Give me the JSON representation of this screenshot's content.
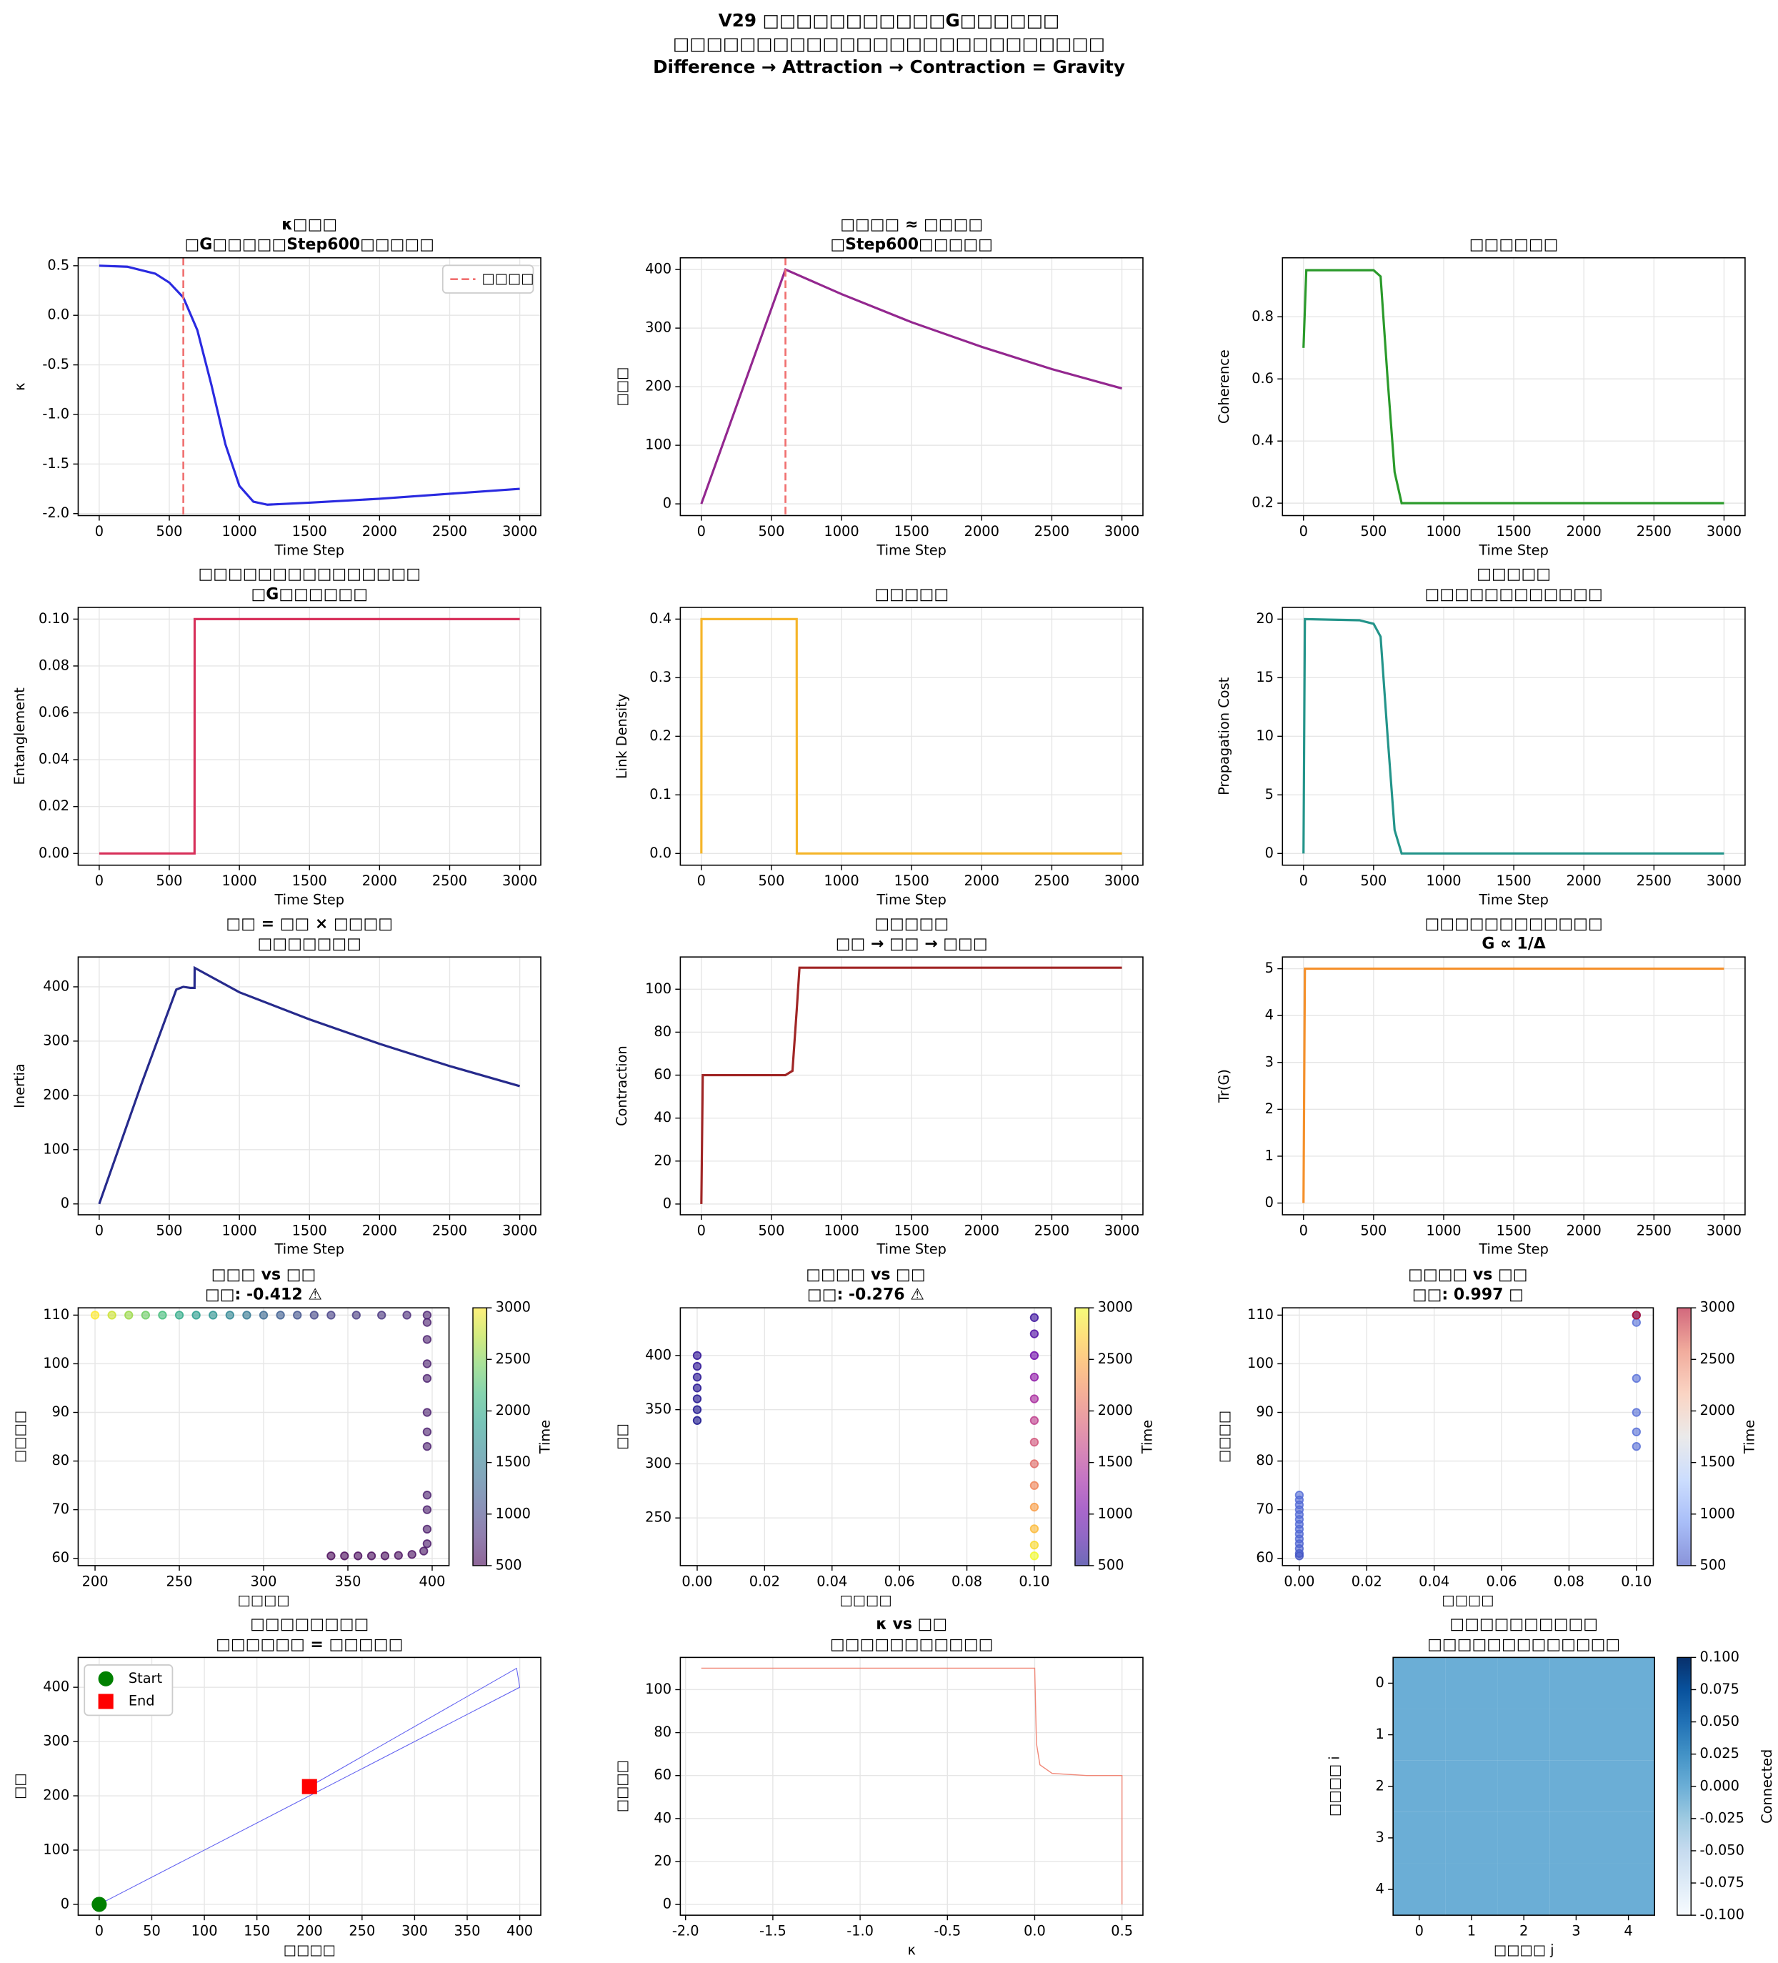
{
  "title": [
    "V29 □□□□□□□□□□□G□□□□□□",
    "□□□□□□□□□□□□□□□□□□□□□□□□□□",
    "Difference → Attraction → Contraction = Gravity"
  ],
  "chart_data": [
    {
      "type": "line",
      "title": [
        "κ□□□",
        "□G□□□□□Step600□□□□□"
      ],
      "xlabel": "Time Step",
      "ylabel": "κ",
      "x": [
        0,
        200,
        400,
        500,
        600,
        700,
        800,
        900,
        1000,
        1100,
        1200,
        1500,
        2000,
        2500,
        3000
      ],
      "series": [
        {
          "color": "#2a2ae0",
          "values": [
            0.5,
            0.49,
            0.42,
            0.33,
            0.18,
            -0.15,
            -0.7,
            -1.3,
            -1.72,
            -1.88,
            -1.91,
            -1.89,
            -1.85,
            -1.8,
            -1.75
          ]
        }
      ],
      "vline": {
        "x": 600,
        "name": "□□□□",
        "color": "#f07070"
      },
      "xlim": [
        -150,
        3150
      ],
      "ylim": [
        -2.02,
        0.58
      ],
      "xticks": [
        0,
        500,
        1000,
        1500,
        2000,
        2500,
        3000
      ],
      "yticks": [
        {
          "value": -2,
          "label": "-2.0"
        },
        -1.5,
        {
          "value": -1,
          "label": "-1.0"
        },
        -0.5,
        {
          "value": 0,
          "label": "0.0"
        },
        0.5
      ],
      "grid": true
    },
    {
      "type": "line",
      "title": [
        "□□□□ ≈ □□□□",
        "□Step600□□□□□"
      ],
      "xlabel": "Time Step",
      "ylabel": "□□□",
      "x": [
        0,
        300,
        600,
        1000,
        1500,
        2000,
        2500,
        3000
      ],
      "series": [
        {
          "color": "#93278f",
          "values": [
            0,
            200,
            400,
            358,
            310,
            268,
            230,
            197
          ]
        }
      ],
      "vline": {
        "x": 600,
        "color": "#f07070"
      },
      "xlim": [
        -150,
        3150
      ],
      "ylim": [
        -20,
        420
      ],
      "xticks": [
        0,
        500,
        1000,
        1500,
        2000,
        2500,
        3000
      ],
      "yticks": [
        0,
        100,
        200,
        300,
        400
      ],
      "grid": true
    },
    {
      "type": "line",
      "title": [
        "□□□□□□"
      ],
      "xlabel": "Time Step",
      "ylabel": "Coherence",
      "x": [
        0,
        20,
        50,
        500,
        550,
        600,
        650,
        700,
        800,
        3000
      ],
      "series": [
        {
          "color": "#2a9a2a",
          "values": [
            0.7,
            0.95,
            0.95,
            0.95,
            0.93,
            0.6,
            0.3,
            0.2,
            0.2,
            0.2
          ]
        }
      ],
      "xlim": [
        -150,
        3150
      ],
      "ylim": [
        0.16,
        0.99
      ],
      "xticks": [
        0,
        500,
        1000,
        1500,
        2000,
        2500,
        3000
      ],
      "yticks": [
        0.2,
        0.4,
        0.6,
        0.8
      ],
      "grid": true
    },
    {
      "type": "line",
      "title": [
        "□□□□□□□□□□□□□□□",
        "□G□□□□□□"
      ],
      "xlabel": "Time Step",
      "ylabel": "Entanglement",
      "x": [
        0,
        680,
        681,
        3000
      ],
      "series": [
        {
          "color": "#d7305a",
          "values": [
            0,
            0,
            0.1,
            0.1
          ]
        }
      ],
      "xlim": [
        -150,
        3150
      ],
      "ylim": [
        -0.005,
        0.105
      ],
      "xticks": [
        0,
        500,
        1000,
        1500,
        2000,
        2500,
        3000
      ],
      "yticks": [
        {
          "value": 0,
          "label": "0.00"
        },
        0.02,
        0.04,
        0.06,
        0.08,
        {
          "value": 0.1,
          "label": "0.10"
        }
      ],
      "grid": true
    },
    {
      "type": "line",
      "title": [
        "□□□□□"
      ],
      "xlabel": "Time Step",
      "ylabel": "Link Density",
      "x": [
        0,
        1,
        680,
        681,
        3000
      ],
      "series": [
        {
          "color": "#f5b52a",
          "values": [
            0,
            0.4,
            0.4,
            0,
            0
          ]
        }
      ],
      "xlim": [
        -150,
        3150
      ],
      "ylim": [
        -0.02,
        0.42
      ],
      "xticks": [
        0,
        500,
        1000,
        1500,
        2000,
        2500,
        3000
      ],
      "yticks": [
        {
          "value": 0,
          "label": "0.0"
        },
        0.1,
        0.2,
        0.3,
        0.4
      ],
      "grid": true
    },
    {
      "type": "line",
      "title": [
        "□□□□□",
        "□□□□□□□□□□□□"
      ],
      "xlabel": "Time Step",
      "ylabel": "Propagation Cost",
      "x": [
        0,
        10,
        400,
        500,
        550,
        600,
        650,
        700,
        3000
      ],
      "series": [
        {
          "color": "#23948a",
          "values": [
            0,
            20,
            19.9,
            19.6,
            18.5,
            10,
            2,
            0,
            0
          ]
        }
      ],
      "xlim": [
        -150,
        3150
      ],
      "ylim": [
        -1,
        21
      ],
      "xticks": [
        0,
        500,
        1000,
        1500,
        2000,
        2500,
        3000
      ],
      "yticks": [
        0,
        5,
        10,
        15,
        20
      ],
      "grid": true
    },
    {
      "type": "line",
      "title": [
        "□□ = □□ × □□□□",
        "□□□□□□□"
      ],
      "xlabel": "Time Step",
      "ylabel": "Inertia",
      "x": [
        0,
        300,
        550,
        600,
        650,
        680,
        681,
        1000,
        1500,
        2000,
        2500,
        3000
      ],
      "series": [
        {
          "color": "#262a8c",
          "values": [
            0,
            220,
            395,
            400,
            398,
            398,
            435,
            390,
            340,
            295,
            254,
            217
          ]
        }
      ],
      "xlim": [
        -150,
        3150
      ],
      "ylim": [
        -20,
        455
      ],
      "xticks": [
        0,
        500,
        1000,
        1500,
        2000,
        2500,
        3000
      ],
      "yticks": [
        0,
        100,
        200,
        300,
        400
      ],
      "grid": true
    },
    {
      "type": "line",
      "title": [
        "□□□□□",
        "□□ → □□ → □□□"
      ],
      "xlabel": "Time Step",
      "ylabel": "Contraction",
      "x": [
        0,
        10,
        600,
        650,
        680,
        700,
        3000
      ],
      "series": [
        {
          "color": "#a02525",
          "values": [
            0,
            60,
            60,
            62,
            90,
            110,
            110
          ]
        }
      ],
      "xlim": [
        -150,
        3150
      ],
      "ylim": [
        -5,
        115
      ],
      "xticks": [
        0,
        500,
        1000,
        1500,
        2000,
        2500,
        3000
      ],
      "yticks": [
        0,
        20,
        40,
        60,
        80,
        100
      ],
      "grid": true
    },
    {
      "type": "line",
      "title": [
        "□□□□□□□□□□□□",
        "G ∝ 1/Δ"
      ],
      "xlabel": "Time Step",
      "ylabel": "Tr(G)",
      "x": [
        0,
        10,
        3000
      ],
      "series": [
        {
          "color": "#f5902a",
          "values": [
            0,
            5,
            5
          ]
        }
      ],
      "xlim": [
        -150,
        3150
      ],
      "ylim": [
        -0.25,
        5.25
      ],
      "xticks": [
        0,
        500,
        1000,
        1500,
        2000,
        2500,
        3000
      ],
      "yticks": [
        0,
        1,
        2,
        3,
        4,
        5
      ],
      "grid": true
    },
    {
      "type": "scatter",
      "title": [
        "□□□ vs □□",
        "□□: -0.412 ⚠"
      ],
      "xlabel": "□□□□",
      "ylabel": "□□□□",
      "x": [
        340,
        348,
        356,
        364,
        372,
        380,
        388,
        395,
        397,
        397,
        397,
        397,
        397,
        397,
        397,
        397,
        397,
        397,
        397,
        397,
        385,
        370,
        355,
        340,
        330,
        320,
        310,
        300,
        290,
        280,
        270,
        260,
        250,
        240,
        230,
        220,
        210,
        200
      ],
      "values": [
        60.5,
        60.5,
        60.5,
        60.5,
        60.5,
        60.6,
        60.8,
        61.5,
        63,
        66,
        70,
        73,
        83,
        86,
        90,
        97,
        100,
        105,
        108.5,
        110,
        110,
        110,
        110,
        110,
        110,
        110,
        110,
        110,
        110,
        110,
        110,
        110,
        110,
        110,
        110,
        110,
        110,
        110
      ],
      "c": [
        500,
        510,
        520,
        530,
        540,
        550,
        560,
        600,
        630,
        650,
        665,
        670,
        675,
        678,
        681,
        684,
        685,
        686,
        688,
        700,
        780,
        850,
        900,
        950,
        1000,
        1100,
        1200,
        1300,
        1450,
        1600,
        1750,
        1850,
        2000,
        2200,
        2400,
        2600,
        2800,
        3000
      ],
      "colormap": "viridis",
      "clim": [
        500,
        3000
      ],
      "cticks": [
        500,
        1000,
        1500,
        2000,
        2500,
        3000
      ],
      "clabel": "Time",
      "xlim": [
        190,
        410
      ],
      "ylim": [
        58.5,
        111.5
      ],
      "xticks": [
        200,
        250,
        300,
        350,
        400
      ],
      "yticks": [
        60,
        70,
        80,
        90,
        100,
        110
      ],
      "grid": true
    },
    {
      "type": "scatter",
      "title": [
        "□□□□ vs □□",
        "□□: -0.276 ⚠"
      ],
      "xlabel": "□□□□",
      "ylabel": "□□",
      "x": [
        0,
        0,
        0,
        0,
        0,
        0,
        0,
        0.1,
        0.1,
        0.1,
        0.1,
        0.1,
        0.1,
        0.1,
        0.1,
        0.1,
        0.1,
        0.1,
        0.1,
        0.1
      ],
      "values": [
        340,
        350,
        360,
        370,
        380,
        390,
        400,
        435,
        420,
        400,
        380,
        360,
        340,
        320,
        300,
        280,
        260,
        240,
        225,
        215
      ],
      "c": [
        500,
        520,
        540,
        560,
        580,
        600,
        620,
        680,
        800,
        1000,
        1200,
        1400,
        1600,
        1800,
        2000,
        2200,
        2400,
        2600,
        2800,
        3000
      ],
      "colormap": "plasma",
      "clim": [
        500,
        3000
      ],
      "cticks": [
        500,
        1000,
        1500,
        2000,
        2500,
        3000
      ],
      "clabel": "Time",
      "xlim": [
        -0.005,
        0.105
      ],
      "ylim": [
        206,
        444
      ],
      "xticks": [
        {
          "value": 0,
          "label": "0.00"
        },
        0.02,
        0.04,
        0.06,
        0.08,
        {
          "value": 0.1,
          "label": "0.10"
        }
      ],
      "yticks": [
        250,
        300,
        350,
        400
      ],
      "grid": true
    },
    {
      "type": "scatter",
      "title": [
        "□□□□ vs □□",
        "□□: 0.997 □"
      ],
      "xlabel": "□□□□",
      "ylabel": "□□□□",
      "x": [
        0,
        0,
        0,
        0,
        0,
        0,
        0,
        0,
        0,
        0,
        0,
        0,
        0,
        0,
        0.1,
        0.1,
        0.1,
        0.1,
        0.1,
        0.1,
        0.1
      ],
      "values": [
        60.5,
        61,
        62,
        63,
        64,
        65,
        66,
        67,
        68,
        69,
        70,
        71,
        72,
        73,
        83,
        86,
        90,
        97,
        108.5,
        110,
        110
      ],
      "c": [
        500,
        550,
        600,
        630,
        645,
        650,
        655,
        658,
        661,
        664,
        666,
        668,
        669,
        670,
        675,
        678,
        681,
        684,
        688,
        700,
        3000
      ],
      "colormap": "coolwarm",
      "clim": [
        500,
        3000
      ],
      "cticks": [
        500,
        1000,
        1500,
        2000,
        2500,
        3000
      ],
      "clabel": "Time",
      "xlim": [
        -0.005,
        0.105
      ],
      "ylim": [
        58.5,
        111.5
      ],
      "xticks": [
        {
          "value": 0,
          "label": "0.00"
        },
        0.02,
        0.04,
        0.06,
        0.08,
        {
          "value": 0.1,
          "label": "0.10"
        }
      ],
      "yticks": [
        60,
        70,
        80,
        90,
        100,
        110
      ],
      "grid": true
    },
    {
      "type": "line",
      "title": [
        "□□□□□□□□",
        "□□□□□□ = □□□□□"
      ],
      "xlabel": "□□□□",
      "ylabel": "□□",
      "x": [
        0,
        400,
        397,
        200
      ],
      "series": [
        {
          "color": "#6060f0",
          "values": [
            0,
            400,
            435,
            217
          ]
        }
      ],
      "markers": [
        {
          "name": "Start",
          "x": 0,
          "y": 0,
          "color": "green",
          "shape": "circle"
        },
        {
          "name": "End",
          "x": 200,
          "y": 217,
          "color": "red",
          "shape": "square"
        }
      ],
      "legend": "upper left",
      "xlim": [
        -20,
        420
      ],
      "ylim": [
        -20,
        455
      ],
      "xticks": [
        0,
        50,
        100,
        150,
        200,
        250,
        300,
        350,
        400
      ],
      "yticks": [
        0,
        100,
        200,
        300,
        400
      ],
      "grid": true
    },
    {
      "type": "line",
      "title": [
        "κ vs □□",
        "□□□□□□□□□□□"
      ],
      "xlabel": "κ",
      "ylabel": "□□□□",
      "x": [
        0.5,
        0.5,
        0.3,
        0.1,
        0.03,
        0.01,
        0,
        -1.91
      ],
      "series": [
        {
          "color": "#f08878",
          "values": [
            0,
            60,
            60,
            61,
            65,
            75,
            110,
            110
          ]
        }
      ],
      "xlim": [
        -2.03,
        0.62
      ],
      "ylim": [
        -5,
        115
      ],
      "xticks": [
        {
          "value": -2,
          "label": "-2.0"
        },
        -1.5,
        {
          "value": -1,
          "label": "-1.0"
        },
        -0.5,
        {
          "value": 0,
          "label": "0.0"
        },
        0.5
      ],
      "yticks": [
        0,
        20,
        40,
        60,
        80,
        100
      ],
      "grid": true
    },
    {
      "type": "heatmap",
      "title": [
        "□□□□□□□□□□",
        "□□□□□□□□□□□□□"
      ],
      "xlabel": "□□□□ j",
      "ylabel": "□□□□ i",
      "z": [
        [
          0,
          0,
          0,
          0,
          0
        ],
        [
          0,
          0,
          0,
          0,
          0
        ],
        [
          0,
          0,
          0,
          0,
          0
        ],
        [
          0,
          0,
          0,
          0,
          0
        ],
        [
          0,
          0,
          0,
          0,
          0
        ]
      ],
      "colormap": "Blues",
      "clim": [
        -0.1,
        0.1
      ],
      "cticks": [
        {
          "value": -0.1,
          "label": "-0.100"
        },
        -0.075,
        {
          "value": -0.05,
          "label": "-0.050"
        },
        -0.025,
        {
          "value": 0,
          "label": "0.000"
        },
        0.025,
        {
          "value": 0.05,
          "label": "0.050"
        },
        0.075,
        {
          "value": 0.1,
          "label": "0.100"
        }
      ],
      "clabel": "Connected",
      "xlim": [
        -0.5,
        4.5
      ],
      "ylim": [
        4.5,
        -0.5
      ],
      "xticks": [
        0,
        1,
        2,
        3,
        4
      ],
      "yticks": [
        0,
        1,
        2,
        3,
        4
      ]
    }
  ]
}
